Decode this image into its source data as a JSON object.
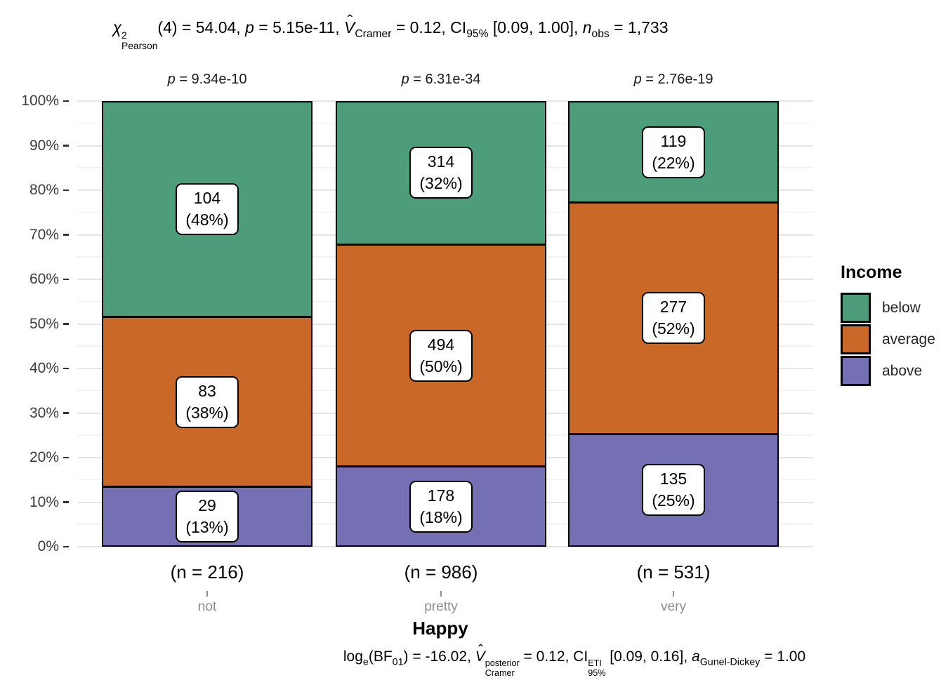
{
  "chart_data": {
    "type": "bar",
    "variant": "stacked-percent",
    "subtitle_tokens": [
      {
        "text": "χ",
        "style": "italic"
      },
      {
        "stack": {
          "sup": "2",
          "sub": "Pearson"
        }
      },
      {
        "text": "(4) = 54.04, ",
        "style": "plain"
      },
      {
        "text": "p",
        "style": "italic"
      },
      {
        "text": " = 5.15e-11, ",
        "style": "plain"
      },
      {
        "text": "V",
        "style": "vhat"
      },
      {
        "text": "Cramer",
        "style": "sub"
      },
      {
        "text": " = 0.12, CI",
        "style": "plain"
      },
      {
        "text": "95%",
        "style": "sub"
      },
      {
        "text": " [0.09, 1.00], ",
        "style": "plain"
      },
      {
        "text": "n",
        "style": "italic"
      },
      {
        "text": "obs",
        "style": "sub"
      },
      {
        "text": " = 1,733",
        "style": "plain"
      }
    ],
    "caption_tokens": [
      {
        "text": "log",
        "style": "plain"
      },
      {
        "text": "e",
        "style": "sub"
      },
      {
        "text": "(BF",
        "style": "plain"
      },
      {
        "text": "01",
        "style": "sub"
      },
      {
        "text": ") = -16.02, ",
        "style": "plain"
      },
      {
        "text": "V",
        "style": "vhat"
      },
      {
        "stack": {
          "sup": "posterior",
          "sub": "Cramer"
        }
      },
      {
        "text": " = 0.12, CI",
        "style": "plain"
      },
      {
        "stack": {
          "sup": "ETI",
          "sub": "95%"
        }
      },
      {
        "text": " [0.09, 0.16], ",
        "style": "plain"
      },
      {
        "text": "a",
        "style": "italic"
      },
      {
        "text": "Gunel-Dickey",
        "style": "sub"
      },
      {
        "text": " = 1.00",
        "style": "plain"
      }
    ],
    "p_label_tokens": [
      [
        {
          "text": "p",
          "style": "italic"
        },
        {
          "text": " = 9.34e-10",
          "style": "plain"
        }
      ],
      [
        {
          "text": "p",
          "style": "italic"
        },
        {
          "text": " = 6.31e-34",
          "style": "plain"
        }
      ],
      [
        {
          "text": "p",
          "style": "italic"
        },
        {
          "text": " = 2.76e-19",
          "style": "plain"
        }
      ]
    ],
    "xlabel": "Happy",
    "categories": [
      "not",
      "pretty",
      "very"
    ],
    "n_labels": [
      "(n = 216)",
      "(n = 986)",
      "(n = 531)"
    ],
    "n_values": [
      216,
      986,
      531
    ],
    "y_ticks": [
      "0%",
      "10%",
      "20%",
      "30%",
      "40%",
      "50%",
      "60%",
      "70%",
      "80%",
      "90%",
      "100%"
    ],
    "ylim": [
      0,
      100
    ],
    "grid": "major+minor",
    "series": [
      {
        "name": "below",
        "color": "#4d9c7a",
        "counts": [
          104,
          314,
          119
        ],
        "pct_labels": [
          "(48%)",
          "(32%)",
          "(22%)"
        ]
      },
      {
        "name": "average",
        "color": "#ca6827",
        "counts": [
          83,
          494,
          277
        ],
        "pct_labels": [
          "(38%)",
          "(50%)",
          "(52%)"
        ]
      },
      {
        "name": "above",
        "color": "#7470b3",
        "counts": [
          29,
          178,
          135
        ],
        "pct_labels": [
          "(13%)",
          "(18%)",
          "(25%)"
        ]
      }
    ],
    "legend": {
      "title": "Income",
      "position": "right",
      "entries": [
        {
          "label": "below",
          "color": "#4d9c7a"
        },
        {
          "label": "average",
          "color": "#ca6827"
        },
        {
          "label": "above",
          "color": "#7470b3"
        }
      ]
    }
  },
  "colors": {
    "background": "#ffffff",
    "grid_major": "#e5e5e5",
    "grid_minor": "#f2f2f2",
    "bar_border": "#000000",
    "y_axis_text": "#3d3d3d",
    "x_category_text": "#8c8c8c",
    "stat_text": "#000000"
  }
}
